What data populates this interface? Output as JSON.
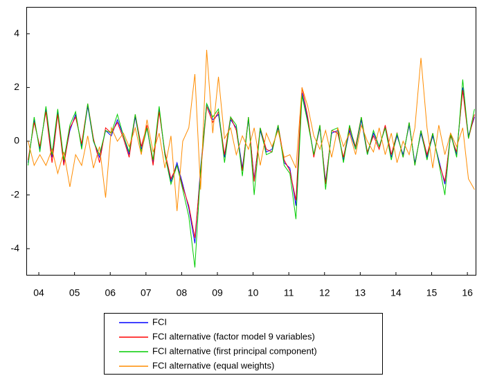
{
  "chart_data": {
    "type": "line",
    "x": [
      2004.2,
      2004.37,
      2004.53,
      2004.7,
      2004.87,
      2005.03,
      2005.2,
      2005.37,
      2005.53,
      2005.7,
      2005.87,
      2006.03,
      2006.2,
      2006.37,
      2006.53,
      2006.7,
      2006.87,
      2007.03,
      2007.2,
      2007.37,
      2007.53,
      2007.7,
      2007.87,
      2008.03,
      2008.2,
      2008.37,
      2008.53,
      2008.7,
      2008.87,
      2009.03,
      2009.2,
      2009.37,
      2009.53,
      2009.7,
      2009.87,
      2010.03,
      2010.2,
      2010.37,
      2010.53,
      2010.7,
      2010.87,
      2011.03,
      2011.2,
      2011.37,
      2011.53,
      2011.7,
      2011.87,
      2012.03,
      2012.2,
      2012.37,
      2012.53,
      2012.7,
      2012.87,
      2013.03,
      2013.2,
      2013.37,
      2013.53,
      2013.7,
      2013.87,
      2014.03,
      2014.2,
      2014.37,
      2014.53,
      2014.7,
      2014.87,
      2015.03,
      2015.2,
      2015.37,
      2015.53,
      2015.7,
      2015.87,
      2016.03,
      2016.2,
      2016.37,
      2016.53,
      2016.7
    ],
    "series": [
      {
        "name": "FCI",
        "color": "#0000ff",
        "values": [
          -0.8,
          0.8,
          -0.3,
          1.2,
          -0.6,
          1.1,
          -0.8,
          0.4,
          1.0,
          -0.2,
          1.3,
          0.0,
          -0.6,
          0.4,
          0.2,
          0.8,
          0.2,
          -0.5,
          0.9,
          -0.3,
          0.5,
          -0.8,
          1.2,
          -0.5,
          -1.5,
          -0.8,
          -1.6,
          -2.5,
          -3.8,
          -1.0,
          1.4,
          0.8,
          1.0,
          -0.6,
          0.8,
          0.5,
          -1.0,
          0.8,
          -1.4,
          0.4,
          -0.4,
          -0.3,
          0.5,
          -0.8,
          -1.0,
          -2.4,
          1.8,
          0.8,
          -0.5,
          0.5,
          -1.5,
          0.3,
          0.4,
          -0.7,
          0.4,
          -0.3,
          0.8,
          -0.5,
          0.3,
          -0.2,
          0.5,
          -0.6,
          0.2,
          -0.5,
          0.6,
          -0.8,
          0.3,
          -0.6,
          0.2,
          -0.7,
          -1.6,
          0.3,
          -0.5,
          2.0,
          0.2,
          0.9
        ]
      },
      {
        "name": "FCI alternative (factor model 9 variables)",
        "color": "#ff0000",
        "values": [
          -0.7,
          0.7,
          -0.2,
          1.1,
          -0.8,
          1.0,
          -0.9,
          0.5,
          0.9,
          -0.1,
          1.4,
          0.1,
          -0.8,
          0.5,
          0.3,
          0.7,
          0.1,
          -0.6,
          1.0,
          -0.2,
          0.6,
          -0.9,
          1.1,
          -0.4,
          -1.4,
          -0.9,
          -1.7,
          -2.4,
          -3.6,
          -1.2,
          1.3,
          0.7,
          1.1,
          -0.5,
          0.9,
          0.4,
          -1.1,
          0.9,
          -1.5,
          0.5,
          -0.3,
          -0.4,
          0.6,
          -0.7,
          -1.1,
          -2.2,
          2.0,
          0.9,
          -0.6,
          0.6,
          -1.6,
          0.4,
          0.3,
          -0.6,
          0.5,
          -0.2,
          0.9,
          -0.4,
          0.2,
          -0.3,
          0.6,
          -0.5,
          0.3,
          -0.6,
          0.7,
          -0.9,
          0.4,
          -0.5,
          0.3,
          -0.8,
          -1.5,
          0.2,
          -0.4,
          1.9,
          0.1,
          1.0
        ]
      },
      {
        "name": "FCI alternative (first principal component)",
        "color": "#00cc00",
        "values": [
          -0.9,
          0.9,
          -0.4,
          1.3,
          -0.5,
          1.2,
          -0.7,
          0.6,
          1.1,
          -0.3,
          1.4,
          0.0,
          -0.5,
          0.4,
          0.3,
          1.0,
          0.2,
          -0.4,
          1.0,
          -0.4,
          0.5,
          -0.7,
          1.3,
          -0.5,
          -1.6,
          -0.9,
          -1.8,
          -2.8,
          -4.7,
          -1.1,
          1.4,
          0.9,
          1.2,
          -0.8,
          0.9,
          0.6,
          -1.3,
          0.9,
          -2.0,
          0.5,
          -0.5,
          -0.4,
          0.6,
          -0.9,
          -1.2,
          -2.9,
          1.7,
          0.7,
          -0.5,
          0.6,
          -1.8,
          0.4,
          0.5,
          -0.8,
          0.6,
          -0.3,
          0.9,
          -0.5,
          0.4,
          -0.2,
          0.5,
          -0.7,
          0.3,
          -0.6,
          0.7,
          -0.9,
          0.4,
          -0.7,
          0.3,
          -0.8,
          -2.0,
          0.3,
          -0.6,
          2.3,
          0.1,
          1.2
        ]
      },
      {
        "name": "FCI alternative (equal weights)",
        "color": "#ff8c00",
        "values": [
          0.0,
          -0.9,
          -0.5,
          -0.9,
          -0.3,
          -1.2,
          -0.4,
          -1.7,
          -0.5,
          -0.9,
          0.2,
          -1.0,
          -0.2,
          -2.1,
          0.5,
          0.0,
          0.3,
          -0.2,
          0.5,
          -0.5,
          0.8,
          -0.4,
          0.3,
          -1.0,
          0.2,
          -2.6,
          0.0,
          0.5,
          2.5,
          -1.8,
          3.4,
          0.3,
          2.4,
          0.1,
          0.5,
          -0.5,
          0.2,
          -0.3,
          0.5,
          -0.9,
          0.3,
          -0.2,
          0.4,
          -0.6,
          -0.5,
          -1.0,
          2.0,
          1.3,
          0.2,
          -0.3,
          0.4,
          -0.6,
          0.5,
          -0.2,
          0.3,
          -0.5,
          0.6,
          0.0,
          -0.4,
          0.5,
          -0.5,
          0.3,
          -0.8,
          0.0,
          -0.5,
          0.5,
          3.1,
          0.5,
          -1.0,
          0.6,
          -0.5,
          0.3,
          -0.2,
          0.5,
          -1.4,
          -1.8
        ]
      }
    ],
    "xlim": [
      2004.15,
      2016.75
    ],
    "xticks": [
      {
        "value": 2004.5,
        "label": "04"
      },
      {
        "value": 2005.5,
        "label": "05"
      },
      {
        "value": 2006.5,
        "label": "06"
      },
      {
        "value": 2007.5,
        "label": "07"
      },
      {
        "value": 2008.5,
        "label": "08"
      },
      {
        "value": 2009.5,
        "label": "09"
      },
      {
        "value": 2010.5,
        "label": "10"
      },
      {
        "value": 2011.5,
        "label": "11"
      },
      {
        "value": 2012.5,
        "label": "12"
      },
      {
        "value": 2013.5,
        "label": "13"
      },
      {
        "value": 2014.5,
        "label": "14"
      },
      {
        "value": 2015.5,
        "label": "15"
      },
      {
        "value": 2016.5,
        "label": "16"
      }
    ],
    "ylim": [
      -5,
      5
    ],
    "yticks": [
      -4,
      -2,
      0,
      2,
      4
    ],
    "grid": false,
    "legend": "bottom"
  }
}
